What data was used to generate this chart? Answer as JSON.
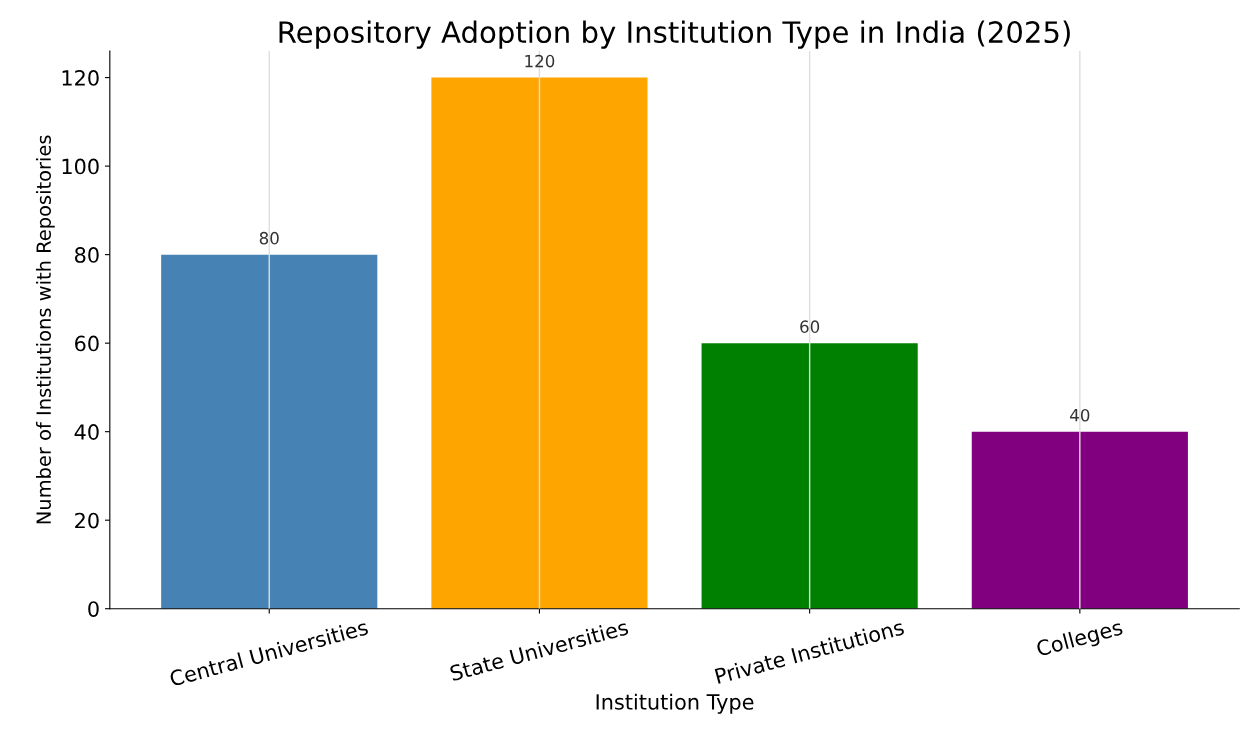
{
  "chart_data": {
    "type": "bar",
    "title": "Repository Adoption by Institution Type in India (2025)",
    "xlabel": "Institution Type",
    "ylabel": "Number of Institutions with Repositories",
    "categories": [
      "Central Universities",
      "State Universities",
      "Private Institutions",
      "Colleges"
    ],
    "values": [
      80,
      120,
      60,
      40
    ],
    "colors": [
      "#4682b4",
      "#ffa500",
      "#008000",
      "#800080"
    ],
    "ylim": [
      0,
      126
    ],
    "yticks": [
      0,
      20,
      40,
      60,
      80,
      100,
      120
    ],
    "grid": "x",
    "data_labels": true
  }
}
